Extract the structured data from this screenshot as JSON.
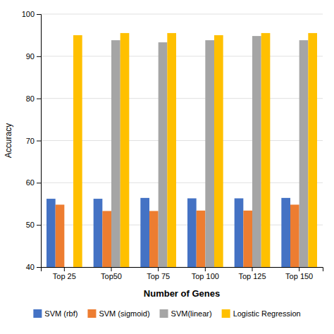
{
  "chart_data": {
    "type": "bar",
    "categories": [
      "Top 25",
      "Top50",
      "Top 75",
      "Top 100",
      "Top 125",
      "Top 150"
    ],
    "series": [
      {
        "name": "SVM (rbf)",
        "color": "#4472C4",
        "values": [
          56.2,
          56.2,
          56.4,
          56.3,
          56.3,
          56.4
        ]
      },
      {
        "name": "SVM (sigmoid)",
        "color": "#ED7D31",
        "values": [
          54.8,
          53.3,
          53.3,
          53.4,
          53.4,
          54.8
        ]
      },
      {
        "name": "SVM(linear)",
        "color": "#A5A5A5",
        "values": [
          null,
          93.8,
          93.3,
          93.8,
          94.8,
          93.8
        ]
      },
      {
        "name": "Logistic Regression",
        "color": "#FFC000",
        "values": [
          95.0,
          95.5,
          95.5,
          95.0,
          95.5,
          95.5
        ]
      }
    ],
    "xlabel": "Number of Genes",
    "ylabel": "Accuracy",
    "ylim": [
      40,
      100
    ],
    "yticks": [
      40,
      50,
      60,
      70,
      80,
      90,
      100
    ],
    "grid": true,
    "legend": "bottom"
  }
}
